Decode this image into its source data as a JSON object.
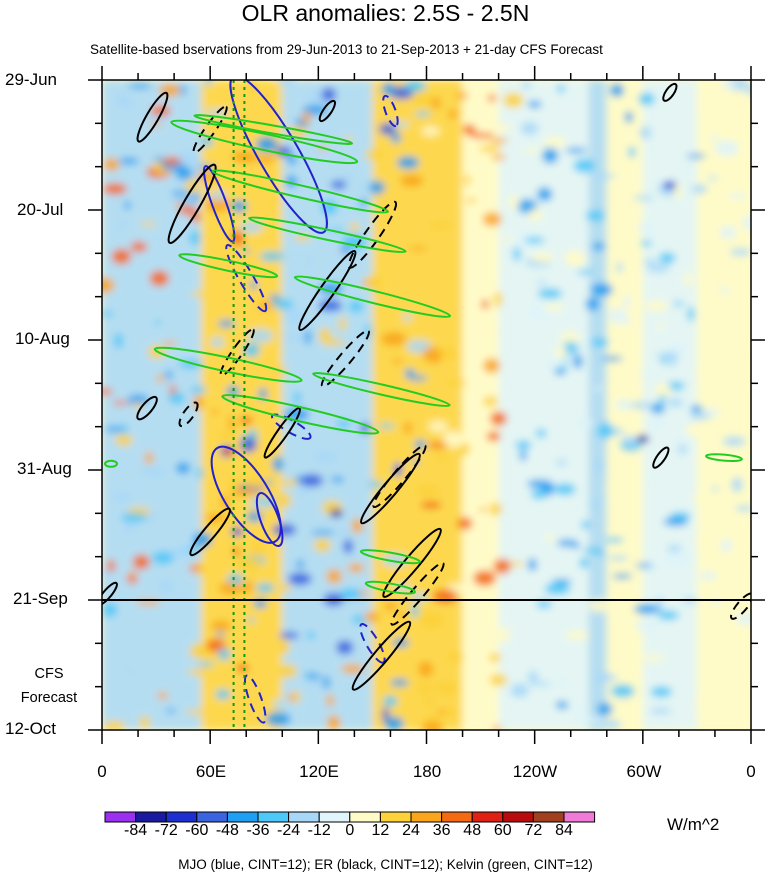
{
  "chart_data": {
    "type": "heatmap",
    "title": "OLR anomalies: 2.5S - 2.5N",
    "subtitle": "Satellite-based bservations from 29-Jun-2013 to 21-Sep-2013 + 21-day CFS Forecast",
    "y_ticks": [
      "29-Jun",
      "20-Jul",
      "10-Aug",
      "31-Aug",
      "21-Sep",
      "12-Oct"
    ],
    "x_ticks": [
      "0",
      "60E",
      "120E",
      "180",
      "120W",
      "60W",
      "0"
    ],
    "x_range_deg_east": [
      0,
      360
    ],
    "forecast_label": [
      "CFS",
      "Forecast"
    ],
    "colorbar": {
      "levels": [
        "-84",
        "-72",
        "-60",
        "-48",
        "-36",
        "-24",
        "-12",
        "0",
        "12",
        "24",
        "36",
        "48",
        "60",
        "72",
        "84"
      ],
      "colors": [
        "#9b30f0",
        "#1a1aa0",
        "#1e2fd0",
        "#3c64e0",
        "#1e9ff0",
        "#4ec8f8",
        "#a8d8f8",
        "#dff4fb",
        "#fffbc8",
        "#fdd23a",
        "#f9a61c",
        "#f46a12",
        "#e02012",
        "#b80c0c",
        "#a0401e",
        "#f07ad8"
      ],
      "unit": "W/m^2"
    },
    "contour_legend": "MJO (blue, CINT=12); ER (black, CINT=12); Kelvin (green, CINT=12)",
    "contour_colors": {
      "mjo": "#2222cc",
      "er": "#000000",
      "kelvin": "#22cc22"
    }
  }
}
